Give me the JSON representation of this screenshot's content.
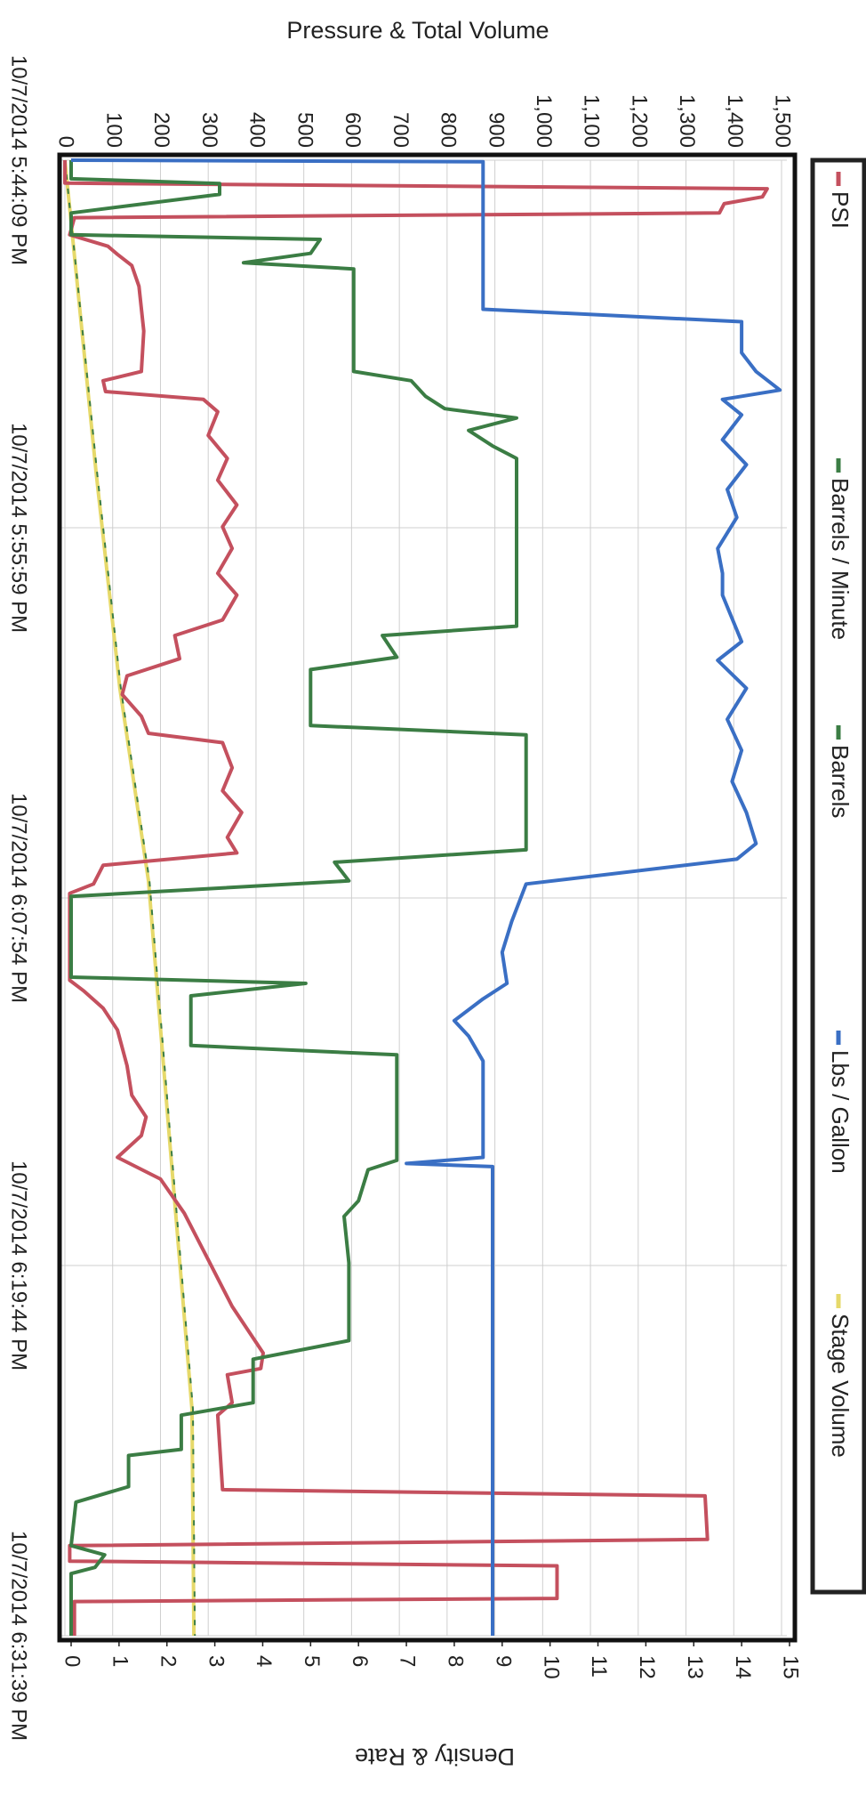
{
  "chart_data": {
    "type": "line",
    "ylabel": "Pressure & Total Volume",
    "y2label": "Density & Rate",
    "legend": "top",
    "grid": true,
    "xlim": [
      0,
      47.5
    ],
    "xticks": [
      {
        "value": 0,
        "label": "10/7/2014 5:44:09 PM"
      },
      {
        "value": 11.833,
        "label": "10/7/2014 5:55:59 PM"
      },
      {
        "value": 23.75,
        "label": "10/7/2014 6:07:54 PM"
      },
      {
        "value": 35.583,
        "label": "10/7/2014 6:19:44 PM"
      },
      {
        "value": 47.5,
        "label": "10/7/2014 6:31:39 PM"
      }
    ],
    "ylim": [
      0,
      1500
    ],
    "yticks": [
      0,
      100,
      200,
      300,
      400,
      500,
      600,
      700,
      800,
      900,
      {
        "value": 1000,
        "label": "1,000"
      },
      {
        "value": 1100,
        "label": "1,100"
      },
      {
        "value": 1200,
        "label": "1,200"
      },
      {
        "value": 1300,
        "label": "1,300"
      },
      {
        "value": 1400,
        "label": "1,400"
      },
      {
        "value": 1500,
        "label": "1,500"
      }
    ],
    "y2lim": [
      0,
      15
    ],
    "y2ticks": [
      0,
      1,
      2,
      3,
      4,
      5,
      6,
      7,
      8,
      9,
      10,
      11,
      12,
      13,
      14,
      15
    ],
    "series": [
      {
        "name": "PSI",
        "color": "#c4505e",
        "x": [
          0,
          0.74,
          0.92,
          1.18,
          1.4,
          1.7,
          1.85,
          2.4,
          2.77,
          3.03,
          3.39,
          4.06,
          5.5,
          6.8,
          7.1,
          7.45,
          7.7,
          8.1,
          8.86,
          9.6,
          10.3,
          11.1,
          11.8,
          12.5,
          13.3,
          14.0,
          14.8,
          15.3,
          16.05,
          16.6,
          17.2,
          17.9,
          18.45,
          18.75,
          19.56,
          20.3,
          21.0,
          21.8,
          22.3,
          22.7,
          23.3,
          23.6,
          26.4,
          26.75,
          27.3,
          28.0,
          29.15,
          30.1,
          30.8,
          31.4,
          32.1,
          32.8,
          33.9,
          35.4,
          36.9,
          38.4,
          38.9,
          39.1,
          40.0,
          40.4,
          42.8,
          43.0,
          44.4,
          44.6,
          45.1,
          45.25,
          46.3,
          46.4,
          47.5
        ],
        "values": [
          0,
          0,
          1470,
          1460,
          1380,
          1370,
          20,
          10,
          90,
          110,
          140,
          155,
          165,
          160,
          80,
          85,
          290,
          320,
          300,
          340,
          320,
          360,
          330,
          350,
          320,
          360,
          330,
          230,
          240,
          130,
          120,
          160,
          175,
          330,
          350,
          330,
          370,
          340,
          360,
          80,
          60,
          10,
          10,
          40,
          80,
          110,
          130,
          140,
          170,
          160,
          110,
          200,
          250,
          300,
          350,
          415,
          410,
          340,
          350,
          320,
          330,
          1340,
          1345,
          10,
          10,
          1030,
          1030,
          20,
          20
        ]
      },
      {
        "name": "Barrels / Minute",
        "color": "#3b7d44",
        "axis": "y2",
        "x": [
          0,
          0.6,
          0.75,
          1.1,
          1.7,
          2.4,
          2.55,
          3.0,
          3.3,
          3.5,
          6.8,
          7.1,
          7.6,
          8.0,
          8.3,
          8.7,
          9.2,
          9.6,
          15.0,
          15.3,
          16.0,
          16.4,
          18.2,
          18.5,
          22.2,
          22.6,
          23.2,
          23.7,
          26.3,
          26.5,
          26.9,
          28.5,
          28.8,
          32.2,
          32.5,
          33.5,
          34.0,
          35.5,
          38.0,
          38.6,
          40.0,
          40.4,
          41.5,
          41.7,
          42.7,
          43.2,
          44.6,
          44.9,
          45.3,
          45.5,
          47.5
        ],
        "values": [
          0,
          0,
          3.1,
          3.1,
          0,
          0,
          5.2,
          5.0,
          3.6,
          5.9,
          5.9,
          7.1,
          7.4,
          7.8,
          9.3,
          8.3,
          8.8,
          9.3,
          9.3,
          6.5,
          6.8,
          5.0,
          5.0,
          9.5,
          9.5,
          5.5,
          5.8,
          0,
          0,
          4.9,
          2.5,
          2.5,
          6.8,
          6.8,
          6.2,
          6.0,
          5.7,
          5.8,
          5.8,
          3.8,
          3.8,
          2.3,
          2.3,
          1.2,
          1.2,
          0.1,
          0,
          0.7,
          0.5,
          0,
          0
        ]
      },
      {
        "name": "Barrels",
        "color": "#3b7d44",
        "x": [
          0,
          10,
          17,
          23.2,
          31.7,
          40.2,
          47.5
        ],
        "values": [
          0,
          67,
          117,
          177,
          222,
          268,
          272
        ]
      },
      {
        "name": "Lbs / Gallon",
        "color": "#3a6fc4",
        "axis": "y2",
        "x": [
          0,
          0.05,
          4.8,
          5.2,
          6.2,
          6.8,
          7.4,
          7.7,
          8.2,
          9.0,
          9.8,
          10.6,
          11.5,
          12.5,
          13.3,
          14.0,
          15.5,
          16.1,
          17.0,
          18.0,
          19.0,
          20.0,
          21.0,
          22.0,
          22.5,
          23.3,
          24.5,
          25.5,
          26.5,
          27.0,
          27.7,
          28.2,
          29.0,
          32.1,
          32.3,
          32.4,
          47.5
        ],
        "values": [
          0,
          8.6,
          8.6,
          14.0,
          14.0,
          14.3,
          14.8,
          13.6,
          14.0,
          13.6,
          14.1,
          13.7,
          13.9,
          13.5,
          13.6,
          13.6,
          14.0,
          13.5,
          14.1,
          13.7,
          14.0,
          13.8,
          14.1,
          14.3,
          13.9,
          9.5,
          9.2,
          9.0,
          9.1,
          8.6,
          8.0,
          8.3,
          8.6,
          8.6,
          7.0,
          8.8,
          8.8
        ]
      },
      {
        "name": "Stage Volume",
        "color": "#e6d96a",
        "x": [
          0,
          10,
          17,
          23.2,
          31.7,
          40.2,
          47.5
        ],
        "values": [
          0,
          65,
          115,
          175,
          220,
          266,
          270
        ]
      }
    ]
  }
}
